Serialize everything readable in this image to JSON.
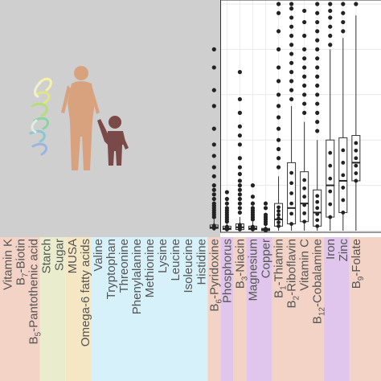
{
  "chart_data": {
    "type": "box",
    "title": "",
    "xlabel": "",
    "ylabel": "",
    "grid": true,
    "legend": "none",
    "icon": "mother-and-child-icon",
    "colors": {
      "panel_gray": "#cfcfcf",
      "vitamin_band": "#f3d3c6",
      "carb_band": "#e9edce",
      "fat_band": "#f6e7c4",
      "amino_band": "#d7f1fa",
      "mineral_band": "#e0c6ec",
      "mother": "#d9a27f",
      "child": "#7a4a48"
    },
    "categories": [
      {
        "name": "Vitamin K",
        "group": "vitamin"
      },
      {
        "name": "B7-Biotin",
        "prefix": "B",
        "sub": "7",
        "rest": "-Biotin",
        "group": "vitamin"
      },
      {
        "name": "B5-Pantothenic acid",
        "prefix": "B",
        "sub": "5",
        "rest": "-Pantothenic acid",
        "group": "vitamin"
      },
      {
        "name": "Starch",
        "group": "carbohydrate"
      },
      {
        "name": "Sugar",
        "group": "carbohydrate"
      },
      {
        "name": "MUSA",
        "group": "fat"
      },
      {
        "name": "Omega-6 fatty acids",
        "group": "fat"
      },
      {
        "name": "Valine",
        "group": "amino"
      },
      {
        "name": "Tryptophan",
        "group": "amino"
      },
      {
        "name": "Threonine",
        "group": "amino"
      },
      {
        "name": "Phenylalanine",
        "group": "amino"
      },
      {
        "name": "Methionine",
        "group": "amino"
      },
      {
        "name": "Lysine",
        "group": "amino"
      },
      {
        "name": "Leucine",
        "group": "amino"
      },
      {
        "name": "Isoleucine",
        "group": "amino"
      },
      {
        "name": "Histidine",
        "group": "amino"
      },
      {
        "name": "B6-Pyridoxine",
        "prefix": "B",
        "sub": "6",
        "rest": "-Pyridoxine",
        "group": "vitamin"
      },
      {
        "name": "Phosphorus",
        "group": "mineral"
      },
      {
        "name": "B3-Niacin",
        "prefix": "B",
        "sub": "3",
        "rest": "-Niacin",
        "group": "vitamin"
      },
      {
        "name": "Magnesium",
        "group": "mineral"
      },
      {
        "name": "Copper",
        "group": "mineral"
      },
      {
        "name": "B1-Thiamin",
        "prefix": "B",
        "sub": "1",
        "rest": "-Thiamin",
        "group": "vitamin"
      },
      {
        "name": "B2-Riboflavin",
        "prefix": "B",
        "sub": "2",
        "rest": "-Riboflavin",
        "group": "vitamin"
      },
      {
        "name": "Vitamin C",
        "group": "vitamin"
      },
      {
        "name": "B12-Cobalamine",
        "prefix": "B",
        "sub": "12",
        "rest": "-Cobalamine",
        "group": "vitamin"
      },
      {
        "name": "Iron",
        "group": "mineral"
      },
      {
        "name": "Zinc",
        "group": "mineral"
      },
      {
        "name": "B9-Folate",
        "prefix": "B",
        "sub": "9",
        "rest": "-Folate",
        "group": "vitamin"
      }
    ],
    "ylim": [
      0,
      100
    ],
    "series": [
      {
        "category": "B6-Pyridoxine",
        "q1": 1,
        "median": 1.5,
        "q3": 2.5,
        "whisker_low": 0,
        "whisker_high": 5,
        "outliers": [
          6,
          7,
          8,
          9,
          10,
          11,
          12,
          14,
          16,
          18,
          20,
          24,
          28,
          33,
          38,
          45,
          55,
          62,
          72,
          80
        ]
      },
      {
        "category": "Phosphorus",
        "q1": 0.5,
        "median": 1,
        "q3": 2,
        "whisker_low": 0,
        "whisker_high": 3,
        "outliers": [
          4,
          5,
          6,
          7,
          8,
          9,
          10,
          12,
          14,
          17
        ]
      },
      {
        "category": "B3-Niacin",
        "q1": 0.5,
        "median": 1.5,
        "q3": 3,
        "whisker_low": 0,
        "whisker_high": 6,
        "outliers": [
          8,
          10,
          12,
          14,
          16,
          18,
          20,
          22,
          25,
          28,
          32,
          38,
          42,
          46,
          52,
          58,
          70
        ]
      },
      {
        "category": "Magnesium",
        "q1": 0.5,
        "median": 1,
        "q3": 2,
        "whisker_low": 0,
        "whisker_high": 4,
        "outliers": [
          5,
          6,
          7,
          8,
          9,
          10,
          12,
          15,
          20
        ]
      },
      {
        "category": "Copper",
        "q1": 0,
        "median": 0.5,
        "q3": 1,
        "whisker_low": 0,
        "whisker_high": 2,
        "outliers": [
          3,
          4,
          5,
          6,
          7,
          10,
          12
        ]
      },
      {
        "category": "B1-Thiamin",
        "q1": 2,
        "median": 5,
        "q3": 12,
        "whisker_low": 0,
        "whisker_high": 24,
        "outliers": [
          28,
          32,
          36,
          40,
          45,
          50,
          55,
          60,
          66,
          72,
          80,
          88,
          96,
          100
        ]
      },
      {
        "category": "B2-Riboflavin",
        "q1": 3,
        "median": 10,
        "q3": 30,
        "whisker_low": 0,
        "whisker_high": 55,
        "outliers": [
          58,
          62,
          66,
          70,
          74,
          78,
          82,
          86,
          90,
          94,
          98,
          100
        ]
      },
      {
        "category": "Vitamin C",
        "q1": 4,
        "median": 12,
        "q3": 26,
        "whisker_low": 0,
        "whisker_high": 48,
        "outliers": [
          52,
          56,
          60,
          64,
          68,
          72,
          76,
          80,
          86,
          92,
          97
        ]
      },
      {
        "category": "B12-Cobalamine",
        "q1": 2,
        "median": 8,
        "q3": 18,
        "whisker_low": 0,
        "whisker_high": 40,
        "outliers": [
          44,
          48,
          52,
          56,
          60,
          64,
          68,
          72,
          76,
          80,
          84,
          88,
          92,
          96,
          100
        ]
      },
      {
        "category": "Iron",
        "q1": 6,
        "median": 20,
        "q3": 40,
        "whisker_low": 0,
        "whisker_high": 80,
        "outliers": [
          82,
          86,
          90,
          94,
          97,
          100
        ]
      },
      {
        "category": "Zinc",
        "q1": 8,
        "median": 22,
        "q3": 41,
        "whisker_low": 0,
        "whisker_high": 85,
        "outliers": [
          88,
          92,
          96,
          100
        ]
      },
      {
        "category": "B9-Folate",
        "q1": 22,
        "median": 30,
        "q3": 42,
        "whisker_low": 0,
        "whisker_high": 95,
        "outliers": [
          100
        ]
      }
    ]
  }
}
